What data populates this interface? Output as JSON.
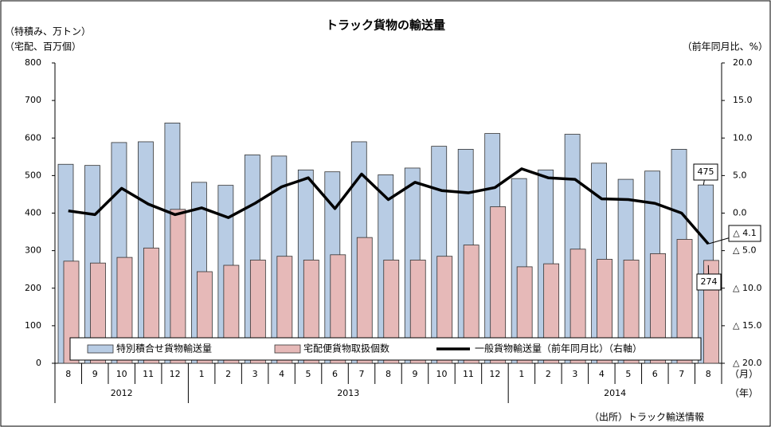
{
  "chart_data": {
    "type": "bar",
    "title": "トラック貨物の輸送量",
    "y_label_lines": [
      "（特積み、万トン）",
      "（宅配、百万個）"
    ],
    "y2_label": "（前年同月比、%）",
    "x_unit_month": "（月）",
    "x_unit_year": "（年）",
    "source": "（出所）トラック輸送情報",
    "categories": [
      "8",
      "9",
      "10",
      "11",
      "12",
      "1",
      "2",
      "3",
      "4",
      "5",
      "6",
      "7",
      "8",
      "9",
      "10",
      "11",
      "12",
      "1",
      "2",
      "3",
      "4",
      "5",
      "6",
      "7",
      "8"
    ],
    "years": [
      "2012",
      "2013",
      "2014"
    ],
    "series": [
      {
        "name": "特別積合せ貨物輸送量",
        "type": "bar",
        "axis": "y",
        "color": "#b8cce4",
        "values": [
          530,
          527,
          588,
          590,
          640,
          482,
          474,
          555,
          552,
          515,
          510,
          590,
          502,
          520,
          578,
          570,
          612,
          492,
          515,
          610,
          533,
          490,
          512,
          570,
          475
        ]
      },
      {
        "name": "宅配便貨物取扱個数",
        "type": "bar",
        "axis": "y",
        "color": "#e6b9b8",
        "values": [
          272,
          267,
          282,
          307,
          410,
          244,
          261,
          275,
          285,
          275,
          289,
          335,
          275,
          275,
          285,
          315,
          417,
          257,
          265,
          304,
          277,
          275,
          292,
          330,
          274
        ]
      },
      {
        "name": "一般貨物輸送量（前年同月比）（右軸）",
        "type": "line",
        "axis": "y2",
        "color": "#000000",
        "values": [
          0.3,
          -0.2,
          3.3,
          1.2,
          -0.2,
          0.7,
          -0.6,
          1.3,
          3.5,
          4.7,
          0.6,
          5.2,
          1.8,
          4.1,
          3.0,
          2.7,
          3.4,
          5.9,
          4.7,
          4.5,
          1.9,
          1.8,
          1.3,
          0.0,
          -4.1
        ],
        "value_labels": [
          null,
          null,
          null,
          null,
          null,
          null,
          null,
          null,
          null,
          null,
          null,
          null,
          null,
          null,
          null,
          null,
          null,
          null,
          null,
          null,
          null,
          null,
          null,
          null,
          "△ 4.1"
        ]
      }
    ],
    "ylim": [
      0,
      800
    ],
    "yticks": [
      0,
      100,
      200,
      300,
      400,
      500,
      600,
      700,
      800
    ],
    "y2lim": [
      -20,
      20
    ],
    "y2ticks": [
      {
        "value": 20,
        "label": "20.0"
      },
      {
        "value": 15,
        "label": "15.0"
      },
      {
        "value": 10,
        "label": "10.0"
      },
      {
        "value": 5,
        "label": "5.0"
      },
      {
        "value": 0,
        "label": "0.0"
      },
      {
        "value": -5,
        "label": "△ 5.0"
      },
      {
        "value": -10,
        "label": "△ 10.0"
      },
      {
        "value": -15,
        "label": "△ 15.0"
      },
      {
        "value": -20,
        "label": "△ 20.0"
      }
    ],
    "legend": "bottom"
  }
}
